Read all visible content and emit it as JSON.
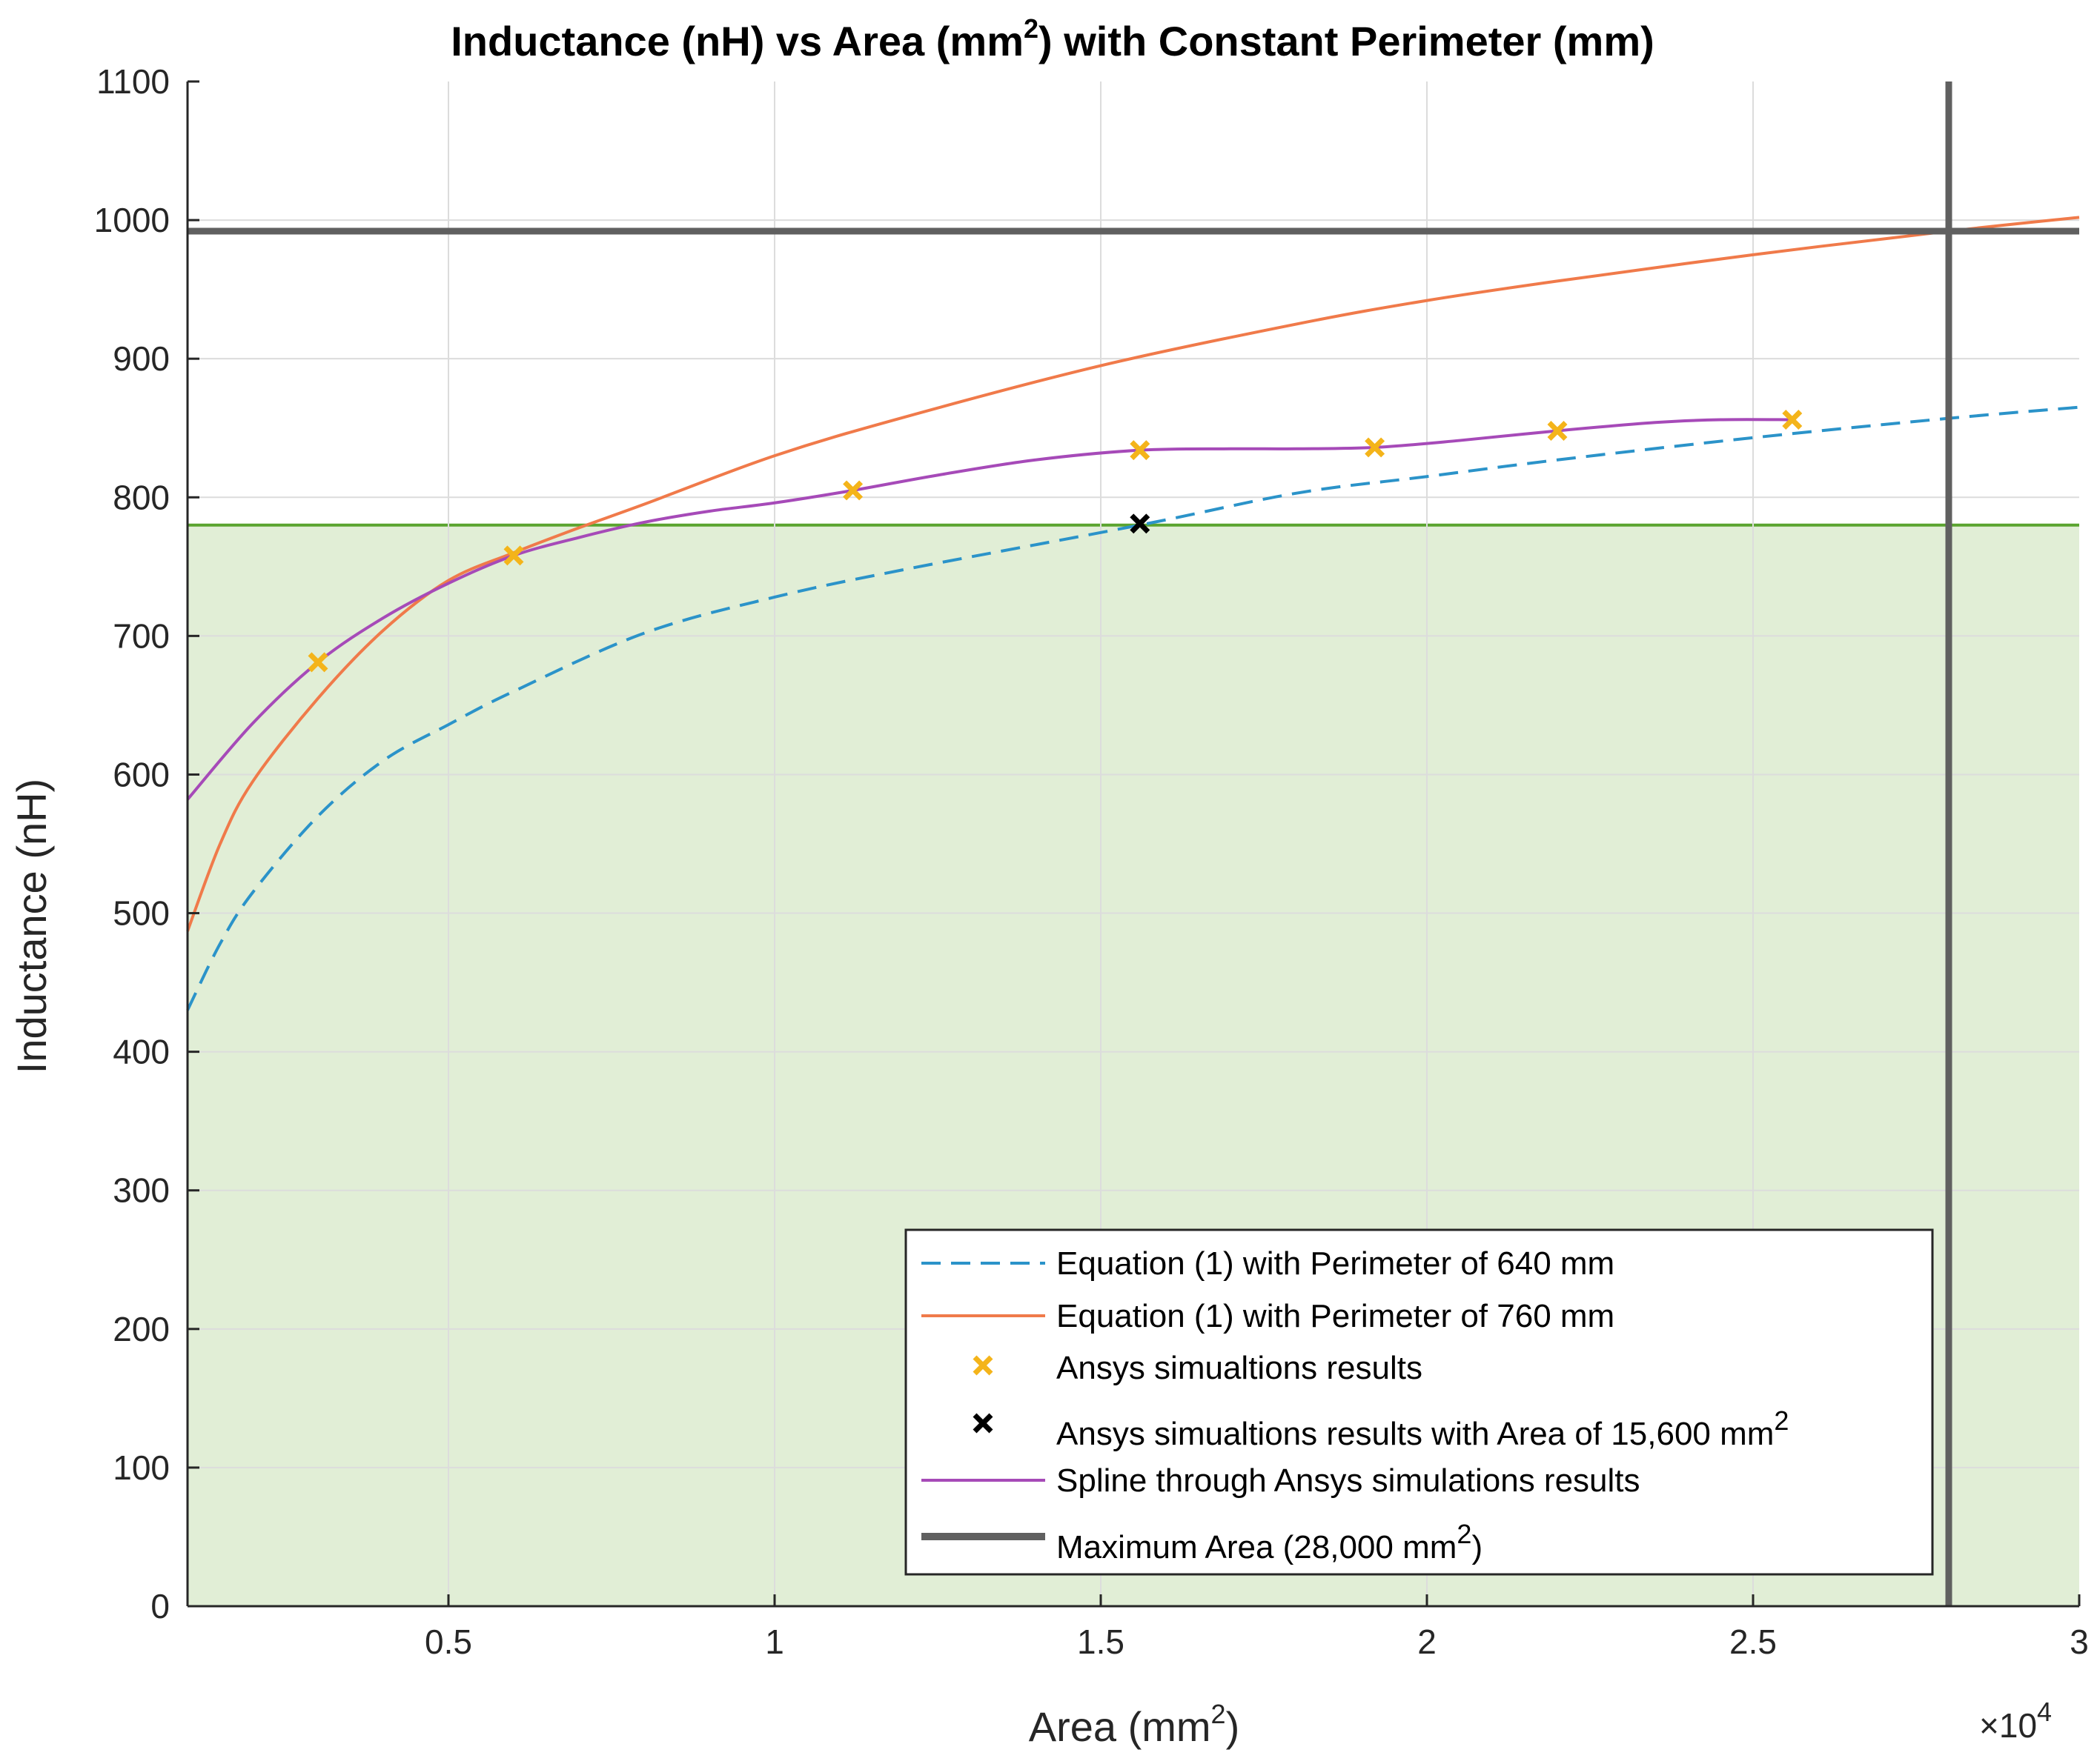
{
  "chart_data": {
    "type": "line",
    "title": "Inductance (nH) vs Area (mm2) with Constant Perimeter (mm)",
    "title_parts": {
      "main": "Inductance (nH) vs Area (mm",
      "sup": "2",
      "tail": ") with Constant Perimeter (mm)"
    },
    "xlabel": "Area (mm2)",
    "xlabel_parts": {
      "main": "Area (mm",
      "sup": "2",
      "tail": ")"
    },
    "ylabel": "Inductance (nH)",
    "x_multiplier": {
      "base": "×10",
      "exp": "4"
    },
    "xlim": [
      1000,
      30000
    ],
    "ylim": [
      0,
      1100
    ],
    "x_ticks": [
      {
        "value": 5000,
        "label": "0.5"
      },
      {
        "value": 10000,
        "label": "1"
      },
      {
        "value": 15000,
        "label": "1.5"
      },
      {
        "value": 20000,
        "label": "2"
      },
      {
        "value": 25000,
        "label": "2.5"
      },
      {
        "value": 30000,
        "label": "3"
      }
    ],
    "y_ticks": [
      0,
      100,
      200,
      300,
      400,
      500,
      600,
      700,
      800,
      900,
      1000,
      1100
    ],
    "grid": true,
    "shaded_region": {
      "y_max": 780,
      "fill": "#e1eed6",
      "edge": "#5aa42f"
    },
    "series": [
      {
        "name": "Equation (1) with Perimeter of 640 mm",
        "style": "dashed",
        "color": "#2b93c9",
        "x": [
          1000,
          1500,
          2000,
          3000,
          4000,
          5000,
          6000,
          8000,
          10000,
          12000,
          15600,
          18000,
          20000,
          22000,
          25000,
          28000,
          30000
        ],
        "y": [
          430,
          478,
          515,
          570,
          610,
          636,
          660,
          702,
          728,
          748,
          780,
          803,
          815,
          827,
          843,
          857,
          865
        ]
      },
      {
        "name": "Equation (1) with Perimeter of 760 mm",
        "style": "solid",
        "color": "#f07a4a",
        "x": [
          1000,
          1500,
          2000,
          3000,
          4000,
          5000,
          6000,
          7000,
          8000,
          10000,
          12000,
          15000,
          18000,
          20000,
          22000,
          25000,
          28000,
          30000
        ],
        "y": [
          487,
          550,
          595,
          655,
          704,
          740,
          760,
          778,
          795,
          830,
          858,
          895,
          925,
          942,
          956,
          975,
          992,
          1002
        ]
      },
      {
        "name": "Ansys simualtions results",
        "style": "markers",
        "marker": "x",
        "color": "#f4b41a",
        "x": [
          3000,
          6000,
          11200,
          15600,
          19200,
          22000,
          25600
        ],
        "y": [
          681,
          758,
          805,
          834,
          836,
          848,
          856
        ]
      },
      {
        "name": "Ansys simualtions results with Area of 15,600 mm2",
        "name_parts": {
          "main": "Ansys simualtions results with Area of 15,600 mm",
          "sup": "2"
        },
        "style": "markers",
        "marker": "x",
        "color": "#000000",
        "x": [
          15600
        ],
        "y": [
          781
        ]
      },
      {
        "name": "Spline through Ansys simulations results",
        "style": "solid",
        "color": "#a64ab8",
        "x": [
          1000,
          2000,
          3000,
          4000,
          5000,
          6000,
          7000,
          8000,
          9000,
          10000,
          11200,
          12500,
          14000,
          15600,
          17000,
          18000,
          19200,
          20500,
          22000,
          23500,
          24500,
          25600
        ],
        "y": [
          582,
          637,
          681,
          713,
          738,
          758,
          771,
          782,
          790,
          796,
          805,
          816,
          827,
          834,
          835,
          835,
          836,
          841,
          848,
          854,
          856,
          856
        ]
      },
      {
        "name": "Maximum Area (28,000 mm2)",
        "name_parts": {
          "main": "Maximum Area (28,000 mm",
          "sup": "2",
          "tail": ")"
        },
        "style": "reference-lines",
        "color": "#606060",
        "x_value": 28000,
        "y_value": 992
      }
    ],
    "legend_position": "bottom-right"
  }
}
